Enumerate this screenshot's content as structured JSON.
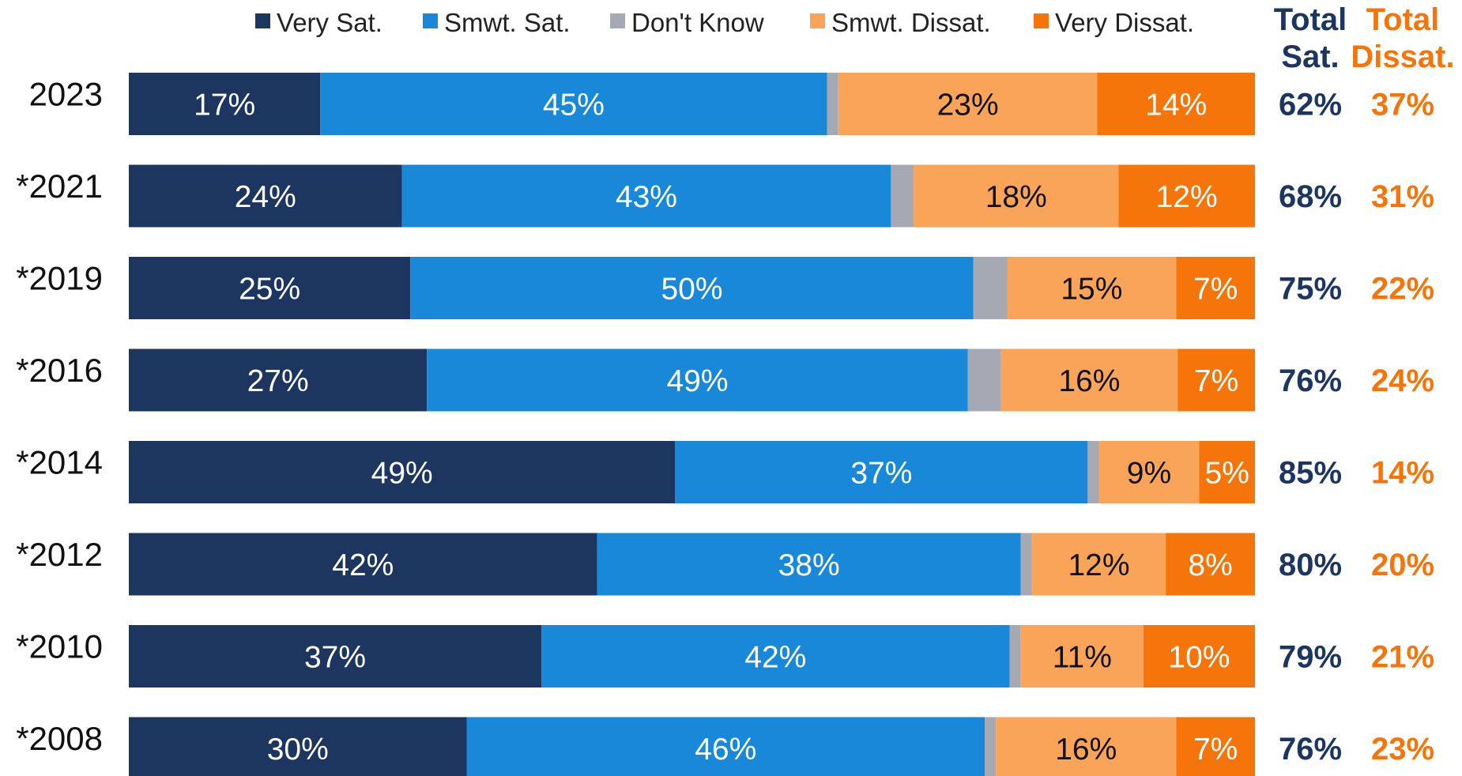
{
  "chart_data": {
    "type": "bar",
    "orientation": "horizontal",
    "stacked": true,
    "categories": [
      "2023",
      "*2021",
      "*2019",
      "*2016",
      "*2014",
      "*2012",
      "*2010",
      "*2008"
    ],
    "series": [
      {
        "name": "Very Sat.",
        "color": "#1d365f",
        "values": [
          17,
          24,
          25,
          27,
          49,
          42,
          37,
          30
        ]
      },
      {
        "name": "Smwt. Sat.",
        "color": "#1a88d8",
        "values": [
          45,
          43,
          50,
          49,
          37,
          38,
          42,
          46
        ]
      },
      {
        "name": "Don't Know",
        "color": "#a5a9b4",
        "values": [
          1,
          2,
          3,
          3,
          1,
          1,
          1,
          1
        ]
      },
      {
        "name": "Smwt. Dissat.",
        "color": "#faa459",
        "values": [
          23,
          18,
          15,
          16,
          9,
          12,
          11,
          16
        ]
      },
      {
        "name": "Very Dissat.",
        "color": "#f6750b",
        "values": [
          14,
          12,
          7,
          7,
          5,
          8,
          10,
          7
        ]
      }
    ],
    "segment_labels": [
      [
        "17%",
        "45%",
        "",
        "23%",
        "14%"
      ],
      [
        "24%",
        "43%",
        "",
        "18%",
        "12%"
      ],
      [
        "25%",
        "50%",
        "",
        "15%",
        "7%"
      ],
      [
        "27%",
        "49%",
        "",
        "16%",
        "7%"
      ],
      [
        "49%",
        "37%",
        "",
        "9%",
        "5%"
      ],
      [
        "42%",
        "38%",
        "",
        "12%",
        "8%"
      ],
      [
        "37%",
        "42%",
        "",
        "11%",
        "10%"
      ],
      [
        "30%",
        "46%",
        "",
        "16%",
        "7%"
      ]
    ],
    "totals": {
      "sat_header": [
        "Total",
        "Sat."
      ],
      "dissat_header": [
        "Total",
        "Dissat."
      ],
      "sat_color": "#1d365f",
      "dissat_color": "#f6750b",
      "sat": [
        "62%",
        "68%",
        "75%",
        "76%",
        "85%",
        "80%",
        "79%",
        "76%"
      ],
      "dissat": [
        "37%",
        "31%",
        "22%",
        "24%",
        "14%",
        "20%",
        "21%",
        "23%"
      ]
    },
    "legend_position": "top",
    "grid": false
  }
}
